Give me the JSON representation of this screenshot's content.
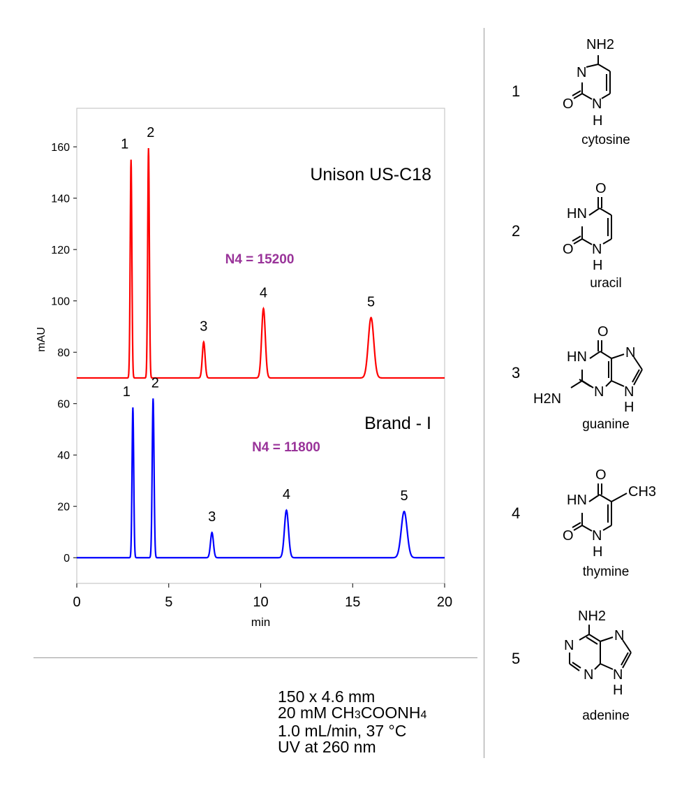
{
  "chart_data": {
    "type": "line",
    "xlabel": "min",
    "ylabel": "mAU",
    "xlim": [
      0,
      20
    ],
    "ylim": [
      -10,
      175
    ],
    "x_ticks": [
      0,
      5,
      10,
      15,
      20
    ],
    "y_ticks": [
      0,
      20,
      40,
      60,
      80,
      100,
      120,
      140,
      160
    ],
    "y_tick_labels": [
      "0",
      "20",
      "40",
      "60",
      "80",
      "100",
      "120",
      "140",
      "160"
    ],
    "grid": false,
    "series": [
      {
        "name": "Unison US-C18",
        "color": "#ff0000",
        "baseline": 70,
        "peaks": [
          {
            "label": "1",
            "rt": 2.95,
            "height": 155,
            "width": 0.045
          },
          {
            "label": "2",
            "rt": 3.9,
            "height": 159.5,
            "width": 0.045
          },
          {
            "label": "3",
            "rt": 6.9,
            "height": 84,
            "width": 0.075
          },
          {
            "label": "4",
            "rt": 10.15,
            "height": 97,
            "width": 0.1
          },
          {
            "label": "5",
            "rt": 16.0,
            "height": 93.5,
            "width": 0.15
          }
        ],
        "efficiency_label": "N4 = 15200"
      },
      {
        "name": "Brand - I",
        "color": "#0000ff",
        "baseline": 0,
        "peaks": [
          {
            "label": "1",
            "rt": 3.05,
            "height": 58.5,
            "width": 0.045
          },
          {
            "label": "2",
            "rt": 4.15,
            "height": 62,
            "width": 0.05
          },
          {
            "label": "3",
            "rt": 7.35,
            "height": 9.8,
            "width": 0.08
          },
          {
            "label": "4",
            "rt": 11.4,
            "height": 18.5,
            "width": 0.11
          },
          {
            "label": "5",
            "rt": 17.8,
            "height": 18,
            "width": 0.16
          }
        ],
        "efficiency_label": "N4 = 11800"
      }
    ],
    "annotation_color": "#993399"
  },
  "conditions": {
    "line1": "150 x 4.6 mm",
    "line2_prefix": "20 mM CH",
    "line2_sub1": "3",
    "line2_mid": "COONH",
    "line2_sub2": "4",
    "line3": "1.0 mL/min, 37 °C",
    "line4": "UV at 260 nm"
  },
  "compounds": [
    {
      "number": "1",
      "name": "cytosine"
    },
    {
      "number": "2",
      "name": "uracil"
    },
    {
      "number": "3",
      "name": "guanine"
    },
    {
      "number": "4",
      "name": "thymine"
    },
    {
      "number": "5",
      "name": "adenine"
    }
  ],
  "structure_labels": {
    "nh2": "NH2",
    "n": "N",
    "o": "O",
    "h": "H",
    "hn": "HN",
    "h2n": "H2N",
    "ch3": "CH3"
  }
}
